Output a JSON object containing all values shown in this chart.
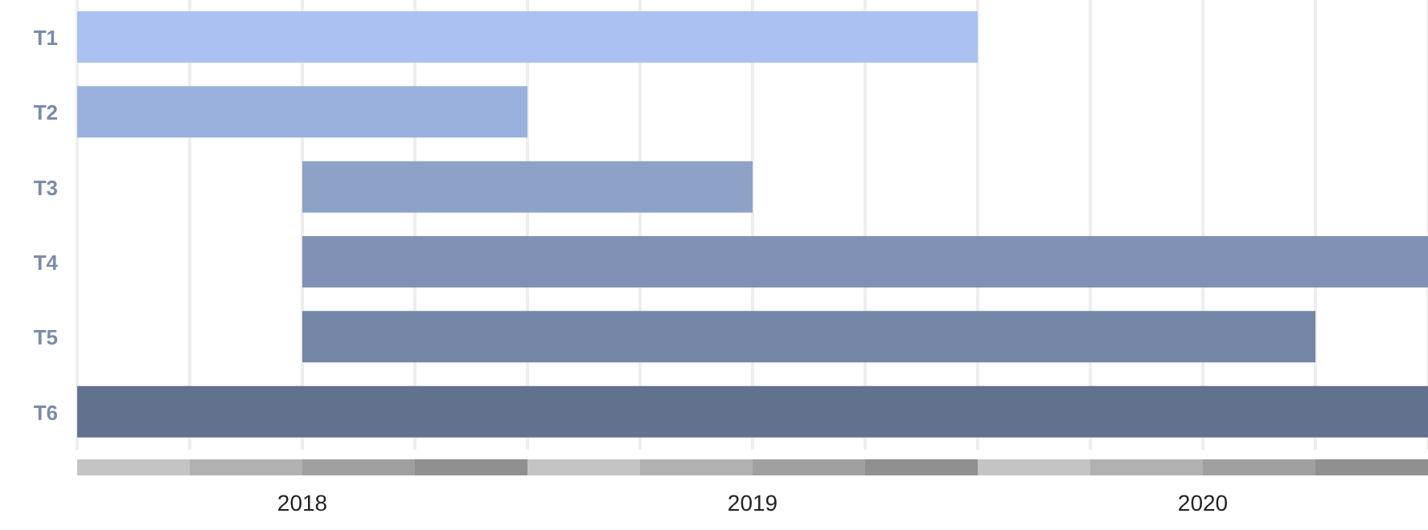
{
  "chart_data": {
    "type": "bar",
    "orientation": "horizontal",
    "categories": [
      "T1",
      "T2",
      "T3",
      "T4",
      "T5",
      "T6"
    ],
    "base": [
      2017.5,
      2017.5,
      2018,
      2018,
      2018,
      2017.5
    ],
    "values": [
      2,
      1,
      1,
      2.5,
      2.25,
      3
    ],
    "colors": [
      "#aac1f1",
      "#9ab1de",
      "#8ea1c7",
      "#8191b5",
      "#7485a6",
      "#62718d"
    ],
    "xlim": [
      2017.5,
      2020.5
    ],
    "xticks": [
      {
        "value": 2017.75,
        "label": null
      },
      2018,
      {
        "value": 2018.25,
        "label": null
      },
      {
        "value": 2018.5,
        "label": null
      },
      {
        "value": 2018.75,
        "label": null
      },
      2019,
      {
        "value": 2019.25,
        "label": null
      },
      {
        "value": 2019.5,
        "label": null
      },
      {
        "value": 2019.75,
        "label": null
      },
      2020,
      {
        "value": 2020.25,
        "label": null
      }
    ],
    "grid": "x"
  }
}
